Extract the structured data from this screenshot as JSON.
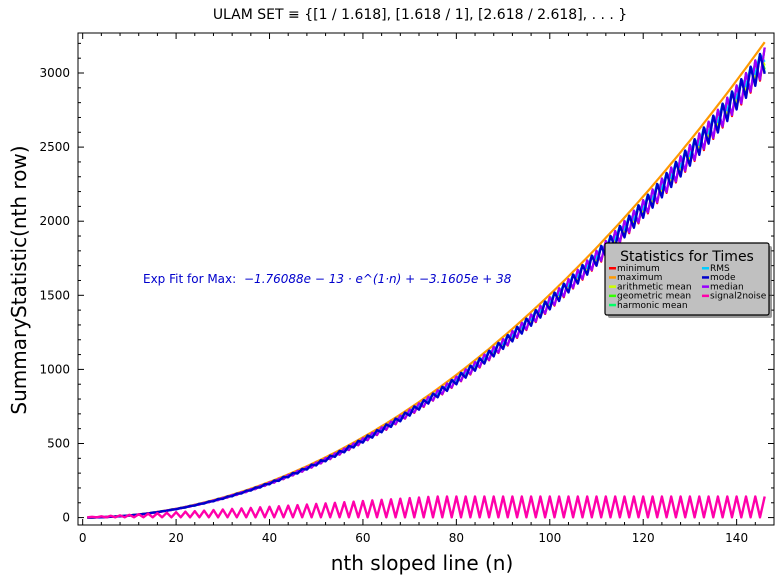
{
  "chart_data": {
    "type": "line",
    "title": "ULAM SET ≡ {[1 / 1.618], [1.618 / 1], [2.618 / 2.618], . . . }",
    "xlabel": "nth sloped line (n)",
    "ylabel": "SummaryStatistic(nth row)",
    "xlim": [
      -1,
      148
    ],
    "ylim": [
      -50,
      3270
    ],
    "xticks": [
      0,
      20,
      40,
      60,
      80,
      100,
      120,
      140
    ],
    "yticks": [
      0,
      500,
      1000,
      1500,
      2000,
      2500,
      3000
    ],
    "grid": false,
    "annotation": {
      "label": "Exp Fit for Max:",
      "formula": "−1.76088e − 13 · e^(1·n) + −3.1605e + 38",
      "color": "#0000cc"
    },
    "legend": {
      "title": "Statistics for Times",
      "placement": "right",
      "entries": [
        {
          "name": "minimum",
          "color": "#ff0000"
        },
        {
          "name": "maximum",
          "color": "#ff9900"
        },
        {
          "name": "arithmetic mean",
          "color": "#ccff00"
        },
        {
          "name": "geometric mean",
          "color": "#33ff00"
        },
        {
          "name": "harmonic mean",
          "color": "#00ff66"
        },
        {
          "name": "RMS",
          "color": "#00ccff"
        },
        {
          "name": "mode",
          "color": "#0000cc"
        },
        {
          "name": "median",
          "color": "#9900ff"
        },
        {
          "name": "signal2noise",
          "color": "#ff00aa"
        }
      ]
    },
    "n_range": [
      1,
      146
    ],
    "series_models": {
      "maximum": {
        "coef": 0.1505,
        "power": 2
      },
      "upper_stats": {
        "coef": 0.1488,
        "power": 2,
        "oscillation_fraction": 0.055
      },
      "mode_dips": {
        "coef": 0.1405,
        "power": 2
      },
      "signal2noise": {
        "peak": 140,
        "growth_until_n": 75,
        "low_value": 2
      }
    }
  }
}
